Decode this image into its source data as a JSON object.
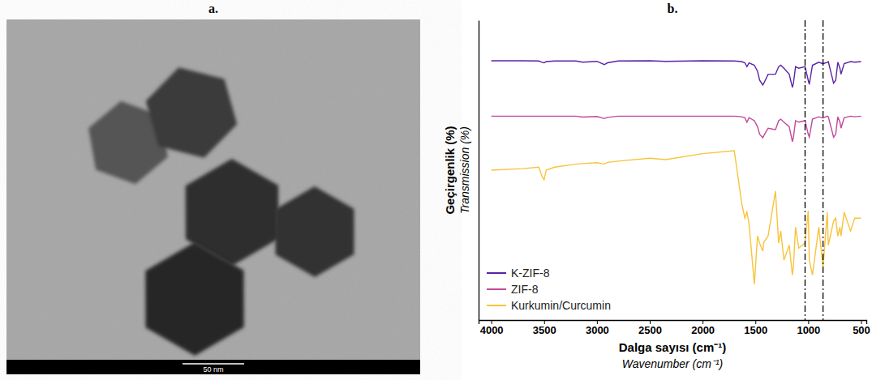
{
  "chart_data": [
    {
      "type": "image",
      "title": "a.",
      "scale_bar": {
        "value": 50,
        "label": "50 nm"
      }
    },
    {
      "type": "line",
      "title": "b.",
      "xlabel": "Dalga sayısı (cm⁻¹)",
      "xlabel_translation": "Wavenumber (cm⁻¹)",
      "ylabel": "Geçirgenlik (%)",
      "ylabel_translation": "Transmission (%)",
      "x": [
        4000,
        3700,
        3550,
        3520,
        3500,
        3480,
        3400,
        3200,
        3135,
        3000,
        2930,
        2900,
        2800,
        2500,
        2350,
        2000,
        1700,
        1630,
        1600,
        1580,
        1560,
        1510,
        1480,
        1460,
        1430,
        1420,
        1380,
        1310,
        1280,
        1260,
        1230,
        1180,
        1150,
        1140,
        1120,
        1090,
        1030,
        1000,
        990,
        960,
        900,
        860,
        820,
        810,
        760,
        740,
        720,
        700,
        690,
        660,
        600,
        560,
        500
      ],
      "series": [
        {
          "name": "K-ZIF-8",
          "color": "#5a22a6",
          "values": [
            86.5,
            86.5,
            86.4,
            86,
            85.8,
            86.2,
            86.4,
            86.4,
            86,
            86.3,
            85.2,
            85.8,
            86.4,
            86.5,
            86.3,
            86.5,
            86.4,
            86.2,
            85.8,
            84.5,
            85.8,
            85,
            83,
            80,
            78.4,
            79,
            82,
            82,
            84.5,
            85,
            84,
            82,
            77.6,
            79,
            84.5,
            84,
            84.5,
            80,
            78.6,
            85,
            86,
            85.5,
            86,
            86.2,
            79,
            80,
            86,
            84,
            82,
            85.5,
            86.2,
            86,
            86.2
          ]
        },
        {
          "name": "ZIF-8",
          "color": "#c2479b",
          "values": [
            68,
            68,
            68,
            68,
            68,
            68,
            68,
            68,
            67.7,
            67.9,
            67.2,
            67.6,
            68,
            68,
            68,
            68,
            68,
            67.8,
            67.5,
            66,
            67.5,
            66.5,
            64.5,
            62,
            60.8,
            61.5,
            64,
            63.5,
            66.5,
            67,
            66,
            64.5,
            59.5,
            61,
            66.5,
            66,
            66.5,
            62,
            61,
            67,
            67.8,
            67.4,
            68,
            67.8,
            61,
            62,
            67.8,
            66,
            64,
            67.5,
            68,
            67.8,
            68
          ]
        },
        {
          "name": "Kurkumin/Curcumin",
          "color": "#f7c43c",
          "values": [
            50,
            50.5,
            51,
            48,
            46.8,
            50,
            51,
            52,
            52.2,
            52.5,
            52,
            52.6,
            53,
            54,
            53.5,
            55.5,
            56.5,
            39,
            34,
            36,
            32,
            12,
            28,
            25.7,
            23,
            26,
            28,
            43,
            25.7,
            29.7,
            20,
            25,
            15,
            18,
            31,
            24,
            25.7,
            36.5,
            20,
            15,
            31,
            17.6,
            36,
            25,
            33,
            34,
            28,
            31,
            28,
            36,
            29.7,
            34,
            34
          ]
        }
      ],
      "xlim": [
        4120,
        450
      ],
      "xticks": [
        4000,
        3500,
        3000,
        2500,
        2000,
        1500,
        1000,
        500
      ],
      "ylim": [
        0,
        100
      ],
      "reference_lines": [
        1030,
        860
      ],
      "tick_labels": "x",
      "grid": false,
      "legend": "lower left",
      "line_style": "solid",
      "marker": "none"
    }
  ]
}
